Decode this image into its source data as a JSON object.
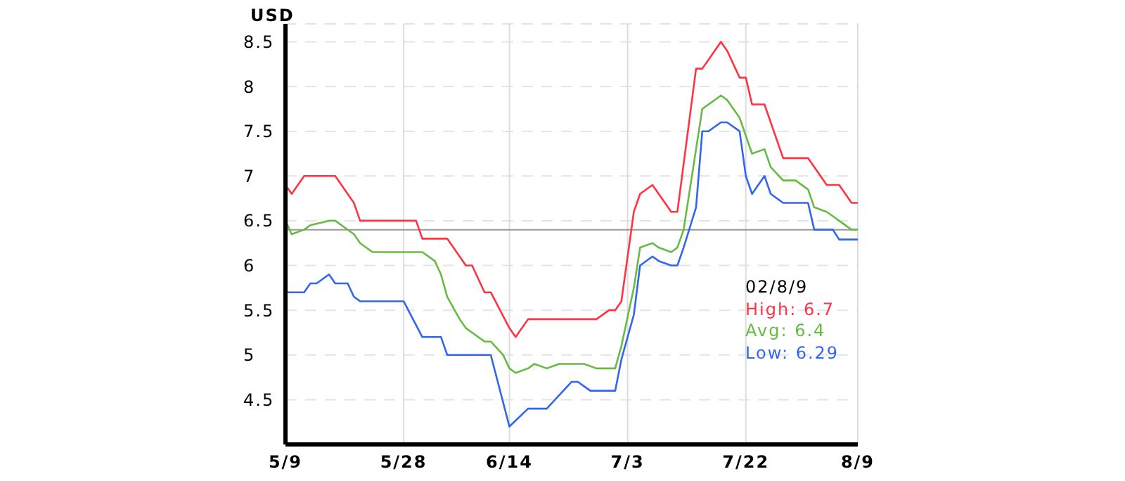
{
  "chart_data": {
    "type": "line",
    "ylabel": "USD",
    "xlim": [
      "--05-09",
      "--08-09"
    ],
    "xticks": [
      {
        "value": "--05-09",
        "label": "5/9"
      },
      {
        "value": "--05-28",
        "label": "5/28"
      },
      {
        "value": "--06-14",
        "label": "6/14"
      },
      {
        "value": "--07-03",
        "label": "7/3"
      },
      {
        "value": "--07-22",
        "label": "7/22"
      },
      {
        "value": "--08-09",
        "label": "8/9"
      }
    ],
    "ylim": [
      4,
      8.7
    ],
    "yticks": [
      4.5,
      5,
      5.5,
      6,
      6.5,
      7,
      7.5,
      8,
      8.5
    ],
    "grid": true,
    "marker": "none",
    "line_style": "solid",
    "ref_lines": [
      {
        "axis": "y",
        "value": 6.4,
        "color": "#999999"
      }
    ],
    "annotations": [
      "02/8/9",
      "High: 6.7",
      "Avg: 6.4",
      "Low: 6.29"
    ],
    "series": [
      {
        "color": "#ff3344",
        "x": [
          "--05-09",
          "--05-10",
          "--05-12",
          "--05-17",
          "--05-19",
          "--05-20",
          "--05-21",
          "--05-30",
          "--05-31",
          "--06-04",
          "--06-06",
          "--06-07",
          "--06-08",
          "--06-10",
          "--06-11",
          "--06-14",
          "--06-15",
          "--06-17",
          "--06-28",
          "--06-30",
          "--07-01",
          "--07-02",
          "--07-04",
          "--07-05",
          "--07-07",
          "--07-08",
          "--07-10",
          "--07-11",
          "--07-14",
          "--07-15",
          "--07-16",
          "--07-18",
          "--07-19",
          "--07-21",
          "--07-22",
          "--07-23",
          "--07-25",
          "--07-28",
          "--08-01",
          "--08-02",
          "--08-04",
          "--08-06",
          "--08-08",
          "--08-09"
        ],
        "values": [
          6.9,
          6.8,
          7.0,
          7.0,
          6.8,
          6.7,
          6.5,
          6.5,
          6.3,
          6.3,
          6.1,
          6.0,
          6.0,
          5.7,
          5.7,
          5.3,
          5.2,
          5.4,
          5.4,
          5.5,
          5.5,
          5.6,
          6.6,
          6.8,
          6.9,
          6.8,
          6.6,
          6.6,
          8.2,
          8.2,
          8.3,
          8.5,
          8.4,
          8.1,
          8.1,
          7.8,
          7.8,
          7.2,
          7.2,
          7.1,
          6.9,
          6.9,
          6.7,
          6.7
        ]
      },
      {
        "color": "#66bb44",
        "x": [
          "--05-09",
          "--05-10",
          "--05-12",
          "--05-13",
          "--05-16",
          "--05-17",
          "--05-18",
          "--05-20",
          "--05-21",
          "--05-23",
          "--05-24",
          "--05-26",
          "--05-28",
          "--05-31",
          "--06-02",
          "--06-03",
          "--06-04",
          "--06-06",
          "--06-07",
          "--06-08",
          "--06-10",
          "--06-11",
          "--06-13",
          "--06-14",
          "--06-15",
          "--06-17",
          "--06-18",
          "--06-20",
          "--06-22",
          "--06-24",
          "--06-26",
          "--06-28",
          "--07-01",
          "--07-02",
          "--07-04",
          "--07-05",
          "--07-07",
          "--07-08",
          "--07-10",
          "--07-11",
          "--07-12",
          "--07-14",
          "--07-15",
          "--07-16",
          "--07-18",
          "--07-19",
          "--07-21",
          "--07-22",
          "--07-23",
          "--07-25",
          "--07-26",
          "--07-28",
          "--07-30",
          "--08-01",
          "--08-02",
          "--08-04",
          "--08-05",
          "--08-06",
          "--08-08",
          "--08-09"
        ],
        "values": [
          6.5,
          6.35,
          6.4,
          6.45,
          6.5,
          6.5,
          6.45,
          6.35,
          6.25,
          6.15,
          6.15,
          6.15,
          6.15,
          6.15,
          6.05,
          5.9,
          5.65,
          5.4,
          5.3,
          5.25,
          5.15,
          5.15,
          5.0,
          4.85,
          4.8,
          4.85,
          4.9,
          4.85,
          4.9,
          4.9,
          4.9,
          4.85,
          4.85,
          5.1,
          5.75,
          6.2,
          6.25,
          6.2,
          6.15,
          6.2,
          6.4,
          7.3,
          7.75,
          7.8,
          7.9,
          7.85,
          7.65,
          7.45,
          7.25,
          7.3,
          7.1,
          6.95,
          6.95,
          6.85,
          6.65,
          6.6,
          6.55,
          6.5,
          6.4,
          6.4
        ]
      },
      {
        "color": "#3366ee",
        "x": [
          "--05-09",
          "--05-12",
          "--05-13",
          "--05-14",
          "--05-16",
          "--05-17",
          "--05-19",
          "--05-20",
          "--05-21",
          "--05-28",
          "--05-31",
          "--06-03",
          "--06-04",
          "--06-11",
          "--06-14",
          "--06-17",
          "--06-20",
          "--06-24",
          "--06-25",
          "--06-27",
          "--07-01",
          "--07-02",
          "--07-04",
          "--07-05",
          "--07-07",
          "--07-08",
          "--07-10",
          "--07-11",
          "--07-12",
          "--07-14",
          "--07-15",
          "--07-16",
          "--07-18",
          "--07-19",
          "--07-21",
          "--07-22",
          "--07-23",
          "--07-25",
          "--07-26",
          "--07-28",
          "--08-01",
          "--08-02",
          "--08-05",
          "--08-06",
          "--08-09"
        ],
        "values": [
          5.7,
          5.7,
          5.8,
          5.8,
          5.9,
          5.8,
          5.8,
          5.65,
          5.6,
          5.6,
          5.2,
          5.2,
          5.0,
          5.0,
          4.2,
          4.4,
          4.4,
          4.7,
          4.7,
          4.6,
          4.6,
          4.95,
          5.45,
          6.0,
          6.1,
          6.05,
          6.0,
          6.0,
          6.2,
          6.65,
          7.5,
          7.5,
          7.6,
          7.6,
          7.5,
          7.0,
          6.8,
          7.0,
          6.8,
          6.7,
          6.7,
          6.4,
          6.4,
          6.29,
          6.29
        ]
      }
    ]
  }
}
